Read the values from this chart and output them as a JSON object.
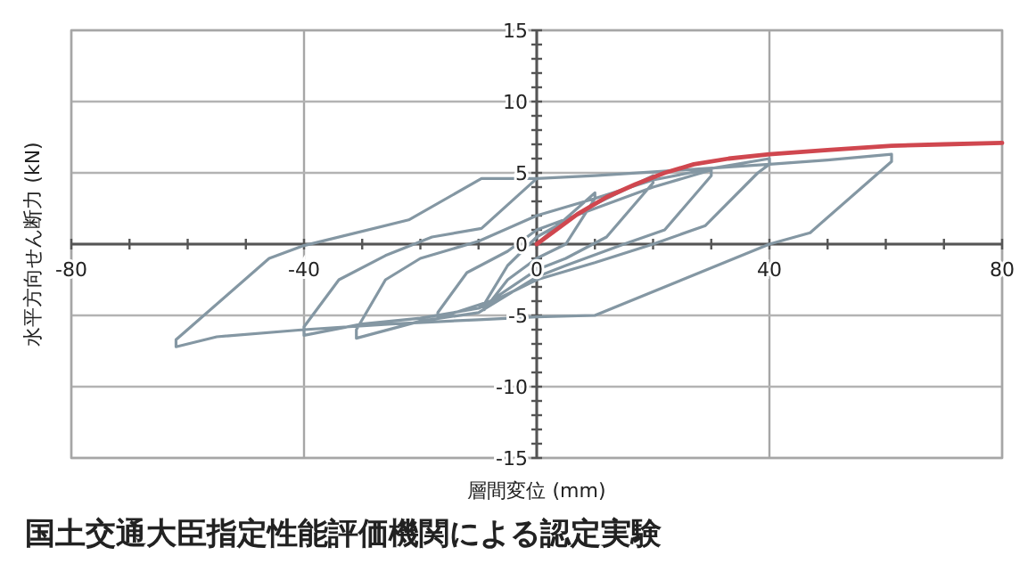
{
  "chart_data": {
    "type": "line",
    "title": "国土交通大臣指定性能評価機関による認定実験",
    "xlabel": "層間変位 (mm)",
    "ylabel": "水平方向せん断力 (kN)",
    "xlim": [
      -80,
      80
    ],
    "ylim": [
      -15,
      15
    ],
    "xticks": [
      -80,
      {
        "value": -70,
        "label": null
      },
      {
        "value": -60,
        "label": null
      },
      {
        "value": -50,
        "label": null
      },
      -40,
      {
        "value": -30,
        "label": null
      },
      {
        "value": -20,
        "label": null
      },
      {
        "value": -10,
        "label": null
      },
      0,
      {
        "value": 10,
        "label": null
      },
      {
        "value": 20,
        "label": null
      },
      {
        "value": 30,
        "label": null
      },
      40,
      {
        "value": 50,
        "label": null
      },
      {
        "value": 60,
        "label": null
      },
      {
        "value": 70,
        "label": null
      },
      80
    ],
    "yticks": [
      -15,
      {
        "value": -14,
        "label": null
      },
      {
        "value": -13,
        "label": null
      },
      {
        "value": -12,
        "label": null
      },
      {
        "value": -11,
        "label": null
      },
      -10,
      {
        "value": -9,
        "label": null
      },
      {
        "value": -8,
        "label": null
      },
      {
        "value": -7,
        "label": null
      },
      {
        "value": -6,
        "label": null
      },
      -5,
      {
        "value": -4,
        "label": null
      },
      {
        "value": -3,
        "label": null
      },
      {
        "value": -2,
        "label": null
      },
      {
        "value": -1,
        "label": null
      },
      0,
      {
        "value": 1,
        "label": null
      },
      {
        "value": 2,
        "label": null
      },
      {
        "value": 3,
        "label": null
      },
      {
        "value": 4,
        "label": null
      },
      5,
      {
        "value": 6,
        "label": null
      },
      {
        "value": 7,
        "label": null
      },
      {
        "value": 8,
        "label": null
      },
      {
        "value": 9,
        "label": null
      },
      10,
      {
        "value": 11,
        "label": null
      },
      {
        "value": 12,
        "label": null
      },
      {
        "value": 13,
        "label": null
      },
      {
        "value": 14,
        "label": null
      },
      15
    ],
    "grid": true,
    "marker": "none",
    "line_style": "solid",
    "series": [
      {
        "color": "#8497a3",
        "x": [
          0,
          5,
          10,
          10,
          5,
          0,
          -5,
          -9,
          -9,
          -5,
          0,
          10,
          20,
          20,
          12,
          5,
          0,
          -8,
          -17,
          -17,
          -12,
          -5,
          0,
          10,
          20,
          30,
          30,
          22,
          15,
          5,
          0,
          -10,
          -20,
          -31,
          -31,
          -26,
          -20,
          -10,
          0,
          10,
          20,
          30,
          40,
          40,
          38,
          29,
          20,
          10,
          0,
          -10,
          -20,
          -30,
          -40,
          -40,
          -34,
          -26,
          -18,
          -9.5,
          0,
          10,
          25,
          40,
          50,
          61,
          61,
          47,
          40,
          25,
          10,
          0,
          -10,
          -25,
          -40,
          -55,
          -62,
          -62,
          -46,
          -40,
          -22,
          -9.5,
          0
        ],
        "values": [
          0,
          1.8,
          3.6,
          3.2,
          0,
          -1,
          -2.5,
          -4.6,
          -4.2,
          -1.5,
          0.5,
          2.8,
          4.8,
          4.3,
          0.5,
          -1,
          -1.8,
          -4,
          -5.2,
          -4.8,
          -2,
          -0.5,
          1,
          2.5,
          4,
          5.2,
          4.8,
          1,
          0,
          -1.5,
          -2.3,
          -4.8,
          -5.4,
          -6.6,
          -6,
          -2.5,
          -1,
          0.2,
          2,
          3.2,
          4.5,
          5.3,
          6,
          5.6,
          5,
          1.3,
          0,
          -1.3,
          -2.5,
          -4.5,
          -5.2,
          -5.6,
          -6.4,
          -5.8,
          -2.5,
          -0.8,
          0.5,
          1.1,
          4.6,
          4.8,
          5.2,
          5.6,
          5.9,
          6.3,
          5.8,
          0.8,
          0,
          -2.5,
          -5,
          -5.1,
          -5.3,
          -5.6,
          -6,
          -6.5,
          -7.2,
          -6.7,
          -1,
          -0.1,
          1.7,
          4.6,
          4.6
        ]
      },
      {
        "color": "#d0474f",
        "x": [
          0,
          7,
          12,
          17,
          22,
          27,
          33,
          40,
          50,
          61,
          70,
          80
        ],
        "values": [
          0,
          2.1,
          3.3,
          4.2,
          5,
          5.6,
          6,
          6.3,
          6.6,
          6.9,
          7,
          7.1
        ]
      }
    ]
  }
}
